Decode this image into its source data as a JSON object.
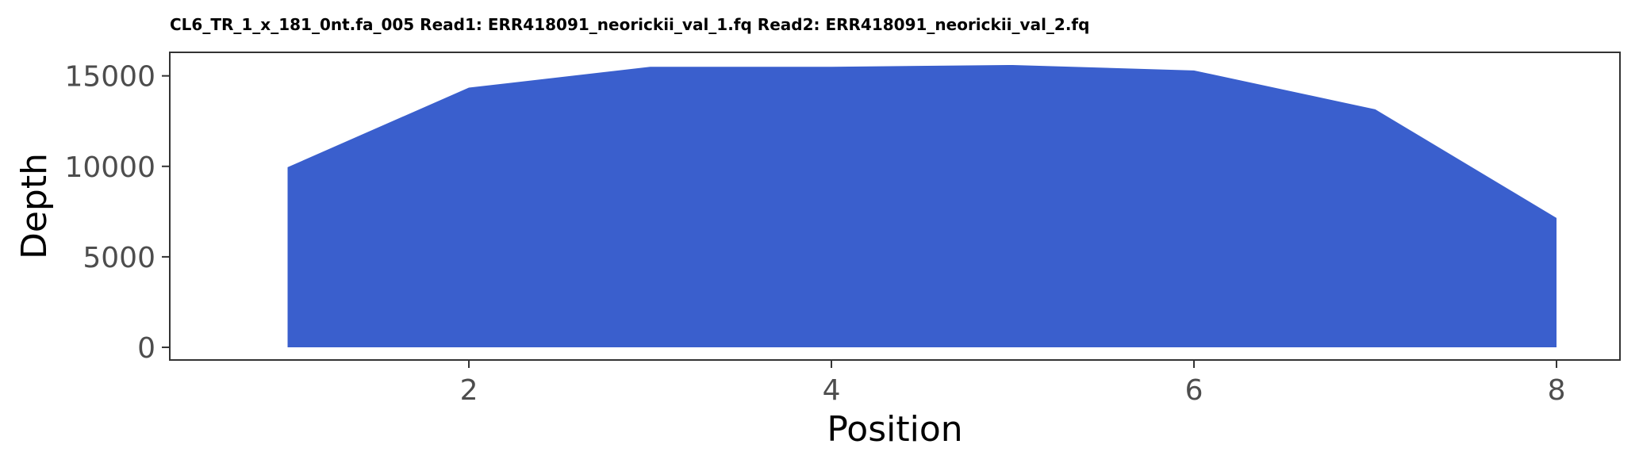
{
  "chart_data": {
    "type": "area",
    "title": "CL6_TR_1_x_181_0nt.fa_005 Read1: ERR418091_neorickii_val_1.fq Read2: ERR418091_neorickii_val_2.fq",
    "xlabel": "Position",
    "ylabel": "Depth",
    "x": [
      1,
      2,
      3,
      4,
      5,
      6,
      7,
      8
    ],
    "series": [
      {
        "values": [
          9950,
          14350,
          15500,
          15500,
          15600,
          15300,
          13150,
          7150
        ]
      }
    ],
    "xlim": [
      0.35,
      8.35
    ],
    "ylim": [
      -700,
      16300
    ],
    "x_ticks": [
      2,
      4,
      6,
      8
    ],
    "y_ticks": [
      0,
      5000,
      10000,
      15000
    ],
    "x_tick_labels": [
      "2",
      "4",
      "6",
      "8"
    ],
    "y_tick_labels": [
      "0",
      "5000",
      "10000",
      "15000"
    ],
    "grid": false,
    "legend": "none",
    "colors": {
      "fill": "#3a5fcd",
      "panel_border": "#333333",
      "tick_label": "#4d4d4d"
    }
  }
}
